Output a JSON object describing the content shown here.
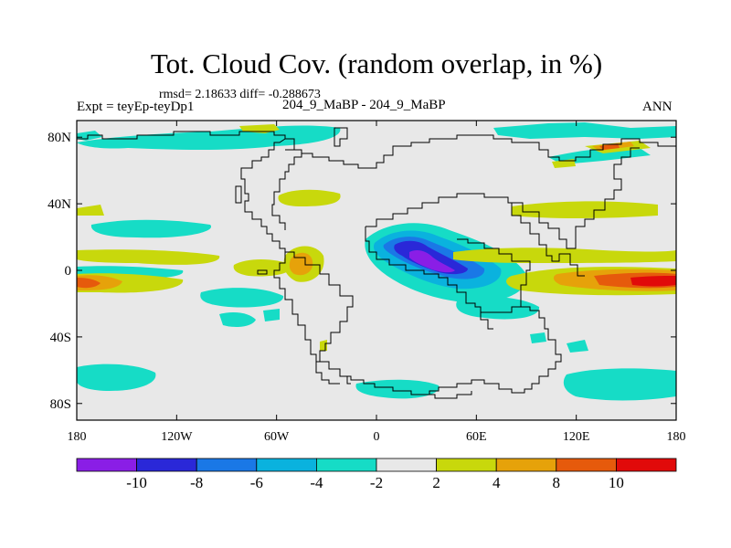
{
  "title": "Tot. Cloud Cov. (random overlap, in %)",
  "stats": "rmsd= 2.18633 diff= -0.288673",
  "expt": "Expt = teyEp-teyDp1",
  "subtitle": "204_9_MaBP - 204_9_MaBP",
  "season": "ANN",
  "y_ticks": [
    {
      "label": "80N",
      "lat": 80
    },
    {
      "label": "40N",
      "lat": 40
    },
    {
      "label": "0",
      "lat": 0
    },
    {
      "label": "40S",
      "lat": -40
    },
    {
      "label": "80S",
      "lat": -80
    }
  ],
  "x_ticks": [
    {
      "label": "180",
      "lon": -180
    },
    {
      "label": "120W",
      "lon": -120
    },
    {
      "label": "60W",
      "lon": -60
    },
    {
      "label": "0",
      "lon": 0
    },
    {
      "label": "60E",
      "lon": 60
    },
    {
      "label": "120E",
      "lon": 120
    },
    {
      "label": "180",
      "lon": 180
    }
  ],
  "colorbar": {
    "colors": [
      "#8a1ee6",
      "#2a28d8",
      "#1a78e6",
      "#0ab2de",
      "#16dcc6",
      "#e8e8e8",
      "#c8d80c",
      "#e6a20a",
      "#e65a0c",
      "#e10a0a"
    ],
    "labels": [
      "-10",
      "-8",
      "-6",
      "-4",
      "-2",
      "2",
      "4",
      "8",
      "10"
    ]
  },
  "chart_data": {
    "type": "heatmap",
    "lon_range": [
      -180,
      180
    ],
    "lat_range": [
      -90,
      90
    ],
    "colors": {
      "background": "#e8e8e8",
      "frame": "#000000"
    }
  }
}
